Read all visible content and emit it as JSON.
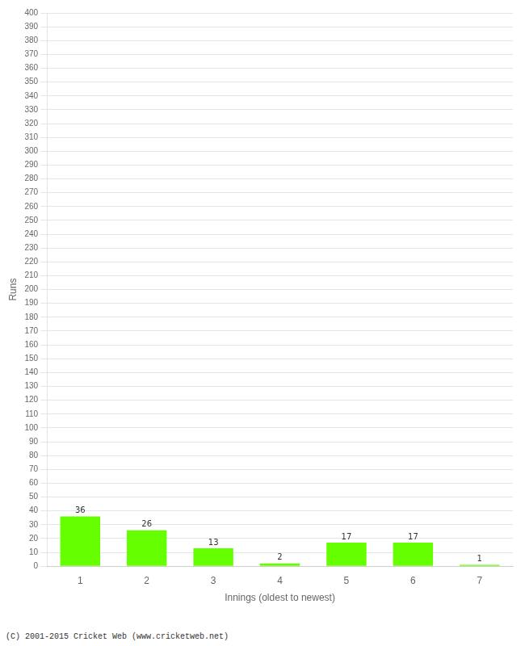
{
  "chart_data": {
    "type": "bar",
    "categories": [
      1,
      2,
      3,
      4,
      5,
      6,
      7
    ],
    "values": [
      36,
      26,
      13,
      2,
      17,
      17,
      1
    ],
    "color": "#66ff00",
    "xlabel": "Innings (oldest to newest)",
    "ylabel": "Runs",
    "ylim": [
      0,
      400
    ],
    "yticks": [
      0,
      10,
      20,
      30,
      40,
      50,
      60,
      70,
      80,
      90,
      100,
      110,
      120,
      130,
      140,
      150,
      160,
      170,
      180,
      190,
      200,
      210,
      220,
      230,
      240,
      250,
      260,
      270,
      280,
      290,
      300,
      310,
      320,
      330,
      340,
      350,
      360,
      370,
      380,
      390,
      400
    ],
    "grid": true,
    "data_labels": true,
    "annotations": [
      "(C) 2001-2015 Cricket Web (www.cricketweb.net)"
    ]
  }
}
